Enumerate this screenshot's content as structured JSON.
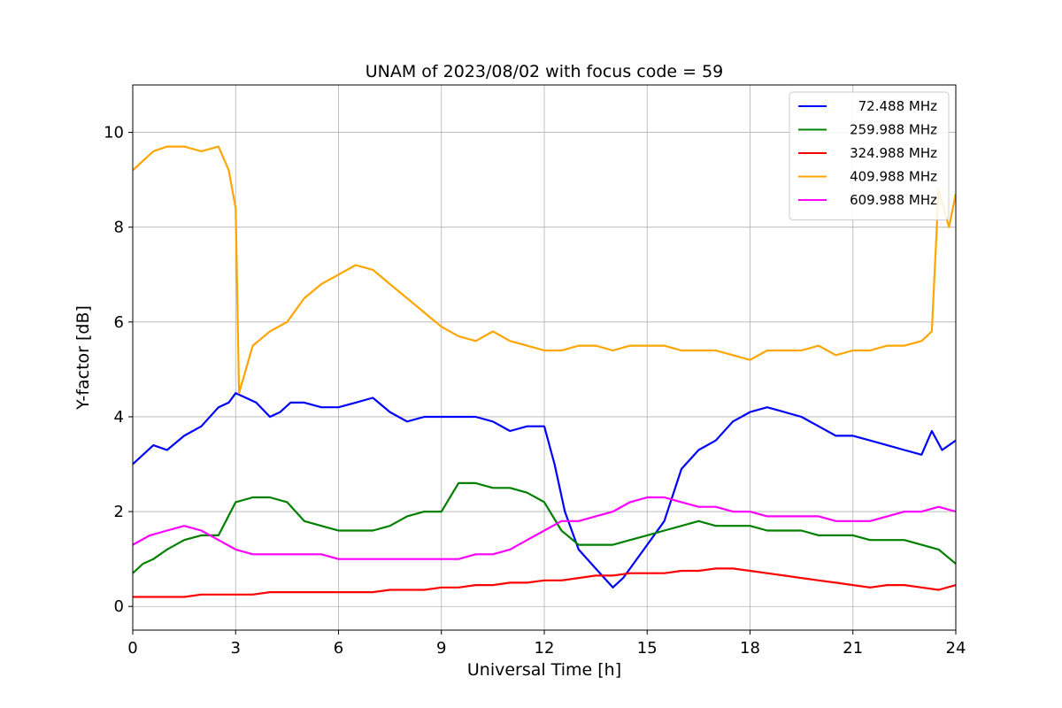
{
  "chart_data": {
    "type": "line",
    "title": "UNAM of 2023/08/02 with focus code = 59",
    "xlabel": "Universal Time [h]",
    "ylabel": "Y-factor [dB]",
    "xlim": [
      0,
      24
    ],
    "ylim": [
      -0.5,
      11
    ],
    "xticks": [
      0,
      3,
      6,
      9,
      12,
      15,
      18,
      21,
      24
    ],
    "yticks": [
      0,
      2,
      4,
      6,
      8,
      10
    ],
    "grid": true,
    "legend_position": "top-right",
    "series": [
      {
        "name": " 72.488 MHz",
        "color": "#0000ff",
        "x": [
          0,
          0.3,
          0.6,
          1,
          1.5,
          2,
          2.5,
          2.8,
          3,
          3.3,
          3.6,
          4,
          4.3,
          4.6,
          5,
          5.5,
          6,
          6.5,
          7,
          7.5,
          8,
          8.5,
          9,
          9.5,
          10,
          10.5,
          11,
          11.5,
          12,
          12.3,
          12.6,
          13,
          13.5,
          14,
          14.3,
          14.6,
          15,
          15.5,
          16,
          16.5,
          17,
          17.5,
          18,
          18.5,
          19,
          19.5,
          20,
          20.5,
          21,
          21.5,
          22,
          22.5,
          23,
          23.3,
          23.6,
          24
        ],
        "y": [
          3.0,
          3.2,
          3.4,
          3.3,
          3.6,
          3.8,
          4.2,
          4.3,
          4.5,
          4.4,
          4.3,
          4.0,
          4.1,
          4.3,
          4.3,
          4.2,
          4.2,
          4.3,
          4.4,
          4.1,
          3.9,
          4.0,
          4.0,
          4.0,
          4.0,
          3.9,
          3.7,
          3.8,
          3.8,
          3.0,
          2.0,
          1.2,
          0.8,
          0.4,
          0.6,
          0.9,
          1.3,
          1.8,
          2.9,
          3.3,
          3.5,
          3.9,
          4.1,
          4.2,
          4.1,
          4.0,
          3.8,
          3.6,
          3.6,
          3.5,
          3.4,
          3.3,
          3.2,
          3.7,
          3.3,
          3.5
        ]
      },
      {
        "name": "259.988 MHz",
        "color": "#008000",
        "x": [
          0,
          0.3,
          0.6,
          1,
          1.5,
          2,
          2.5,
          3,
          3.5,
          4,
          4.5,
          5,
          5.5,
          6,
          6.5,
          7,
          7.5,
          8,
          8.5,
          9,
          9.5,
          10,
          10.5,
          11,
          11.5,
          12,
          12.5,
          13,
          13.5,
          14,
          14.5,
          15,
          15.5,
          16,
          16.5,
          17,
          17.5,
          18,
          18.5,
          19,
          19.5,
          20,
          20.5,
          21,
          21.5,
          22,
          22.5,
          23,
          23.5,
          24
        ],
        "y": [
          0.7,
          0.9,
          1.0,
          1.2,
          1.4,
          1.5,
          1.5,
          2.2,
          2.3,
          2.3,
          2.2,
          1.8,
          1.7,
          1.6,
          1.6,
          1.6,
          1.7,
          1.9,
          2.0,
          2.0,
          2.6,
          2.6,
          2.5,
          2.5,
          2.4,
          2.2,
          1.6,
          1.3,
          1.3,
          1.3,
          1.4,
          1.5,
          1.6,
          1.7,
          1.8,
          1.7,
          1.7,
          1.7,
          1.6,
          1.6,
          1.6,
          1.5,
          1.5,
          1.5,
          1.4,
          1.4,
          1.4,
          1.3,
          1.2,
          0.9
        ]
      },
      {
        "name": "324.988 MHz",
        "color": "#ff0000",
        "x": [
          0,
          0.5,
          1,
          1.5,
          2,
          2.5,
          3,
          3.5,
          4,
          4.5,
          5,
          5.5,
          6,
          6.5,
          7,
          7.5,
          8,
          8.5,
          9,
          9.5,
          10,
          10.5,
          11,
          11.5,
          12,
          12.5,
          13,
          13.5,
          14,
          14.5,
          15,
          15.5,
          16,
          16.5,
          17,
          17.5,
          18,
          18.5,
          19,
          19.5,
          20,
          20.5,
          21,
          21.5,
          22,
          22.5,
          23,
          23.5,
          24
        ],
        "y": [
          0.2,
          0.2,
          0.2,
          0.2,
          0.25,
          0.25,
          0.25,
          0.25,
          0.3,
          0.3,
          0.3,
          0.3,
          0.3,
          0.3,
          0.3,
          0.35,
          0.35,
          0.35,
          0.4,
          0.4,
          0.45,
          0.45,
          0.5,
          0.5,
          0.55,
          0.55,
          0.6,
          0.65,
          0.65,
          0.7,
          0.7,
          0.7,
          0.75,
          0.75,
          0.8,
          0.8,
          0.75,
          0.7,
          0.65,
          0.6,
          0.55,
          0.5,
          0.45,
          0.4,
          0.45,
          0.45,
          0.4,
          0.35,
          0.45
        ]
      },
      {
        "name": "409.988 MHz",
        "color": "#ffa500",
        "x": [
          0,
          0.3,
          0.6,
          1,
          1.5,
          2,
          2.5,
          2.8,
          3,
          3.1,
          3.5,
          4,
          4.5,
          5,
          5.5,
          6,
          6.5,
          7,
          7.5,
          8,
          8.5,
          9,
          9.5,
          10,
          10.5,
          11,
          11.5,
          12,
          12.5,
          13,
          13.5,
          14,
          14.5,
          15,
          15.5,
          16,
          16.5,
          17,
          17.5,
          18,
          18.5,
          19,
          19.5,
          20,
          20.5,
          21,
          21.5,
          22,
          22.5,
          23,
          23.3,
          23.5,
          23.8,
          24
        ],
        "y": [
          9.2,
          9.4,
          9.6,
          9.7,
          9.7,
          9.6,
          9.7,
          9.2,
          8.4,
          4.5,
          5.5,
          5.8,
          6.0,
          6.5,
          6.8,
          7.0,
          7.2,
          7.1,
          6.8,
          6.5,
          6.2,
          5.9,
          5.7,
          5.6,
          5.8,
          5.6,
          5.5,
          5.4,
          5.4,
          5.5,
          5.5,
          5.4,
          5.5,
          5.5,
          5.5,
          5.4,
          5.4,
          5.4,
          5.3,
          5.2,
          5.4,
          5.4,
          5.4,
          5.5,
          5.3,
          5.4,
          5.4,
          5.5,
          5.5,
          5.6,
          5.8,
          8.8,
          8.0,
          8.7
        ]
      },
      {
        "name": "609.988 MHz",
        "color": "#ff00ff",
        "x": [
          0,
          0.5,
          1,
          1.5,
          2,
          2.5,
          3,
          3.5,
          4,
          4.5,
          5,
          5.5,
          6,
          6.5,
          7,
          7.5,
          8,
          8.5,
          9,
          9.5,
          10,
          10.5,
          11,
          11.5,
          12,
          12.5,
          13,
          13.5,
          14,
          14.5,
          15,
          15.5,
          16,
          16.5,
          17,
          17.5,
          18,
          18.5,
          19,
          19.5,
          20,
          20.5,
          21,
          21.5,
          22,
          22.5,
          23,
          23.5,
          24
        ],
        "y": [
          1.3,
          1.5,
          1.6,
          1.7,
          1.6,
          1.4,
          1.2,
          1.1,
          1.1,
          1.1,
          1.1,
          1.1,
          1.0,
          1.0,
          1.0,
          1.0,
          1.0,
          1.0,
          1.0,
          1.0,
          1.1,
          1.1,
          1.2,
          1.4,
          1.6,
          1.8,
          1.8,
          1.9,
          2.0,
          2.2,
          2.3,
          2.3,
          2.2,
          2.1,
          2.1,
          2.0,
          2.0,
          1.9,
          1.9,
          1.9,
          1.9,
          1.8,
          1.8,
          1.8,
          1.9,
          2.0,
          2.0,
          2.1,
          2.0
        ]
      }
    ]
  }
}
